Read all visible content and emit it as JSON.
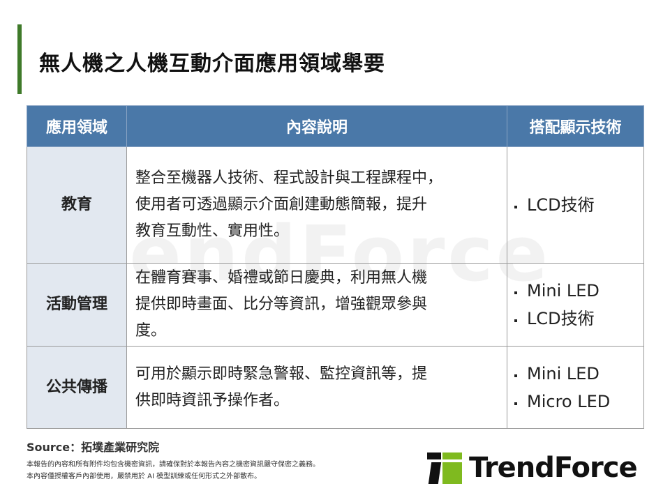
{
  "title": "無人機之人機互動介面應用領域舉要",
  "watermark": "TrendForce",
  "table": {
    "headers": [
      "應用領域",
      "內容說明",
      "搭配顯示技術"
    ],
    "rows": [
      {
        "area": "教育",
        "desc": [
          "整合至機器人技術、程式設計與工程課程中，",
          "使用者可透過顯示介面創建動態簡報，提升",
          "教育互動性、實用性。"
        ],
        "tech": [
          "LCD技術"
        ]
      },
      {
        "area": "活動管理",
        "desc": [
          "在體育賽事、婚禮或節日慶典，利用無人機",
          "提供即時畫面、比分等資訊，增強觀眾參與",
          "度。"
        ],
        "tech": [
          "Mini LED",
          "LCD技術"
        ]
      },
      {
        "area": "公共傳播",
        "desc": [
          "可用於顯示即時緊急警報、監控資訊等，提",
          "供即時資訊予操作者。"
        ],
        "tech": [
          "Mini LED",
          "Micro LED"
        ]
      }
    ]
  },
  "source": "Source：拓墣產業研究院",
  "notes": [
    "本報告的內容和所有附件均包含機密資訊，請確保對於本報告內容之機密資訊嚴守保密之義務。",
    "本內容僅授權客戶內部使用，嚴禁用於 AI 模型訓練或任何形式之外部散布。"
  ],
  "logo": {
    "text": "TrendForce",
    "colors": {
      "green": "#7fba1f",
      "black": "#111111"
    }
  },
  "colors": {
    "header": "#4a78a8",
    "area_bg": "#e2e8f0",
    "accent_bar": "#3f7a2a"
  }
}
